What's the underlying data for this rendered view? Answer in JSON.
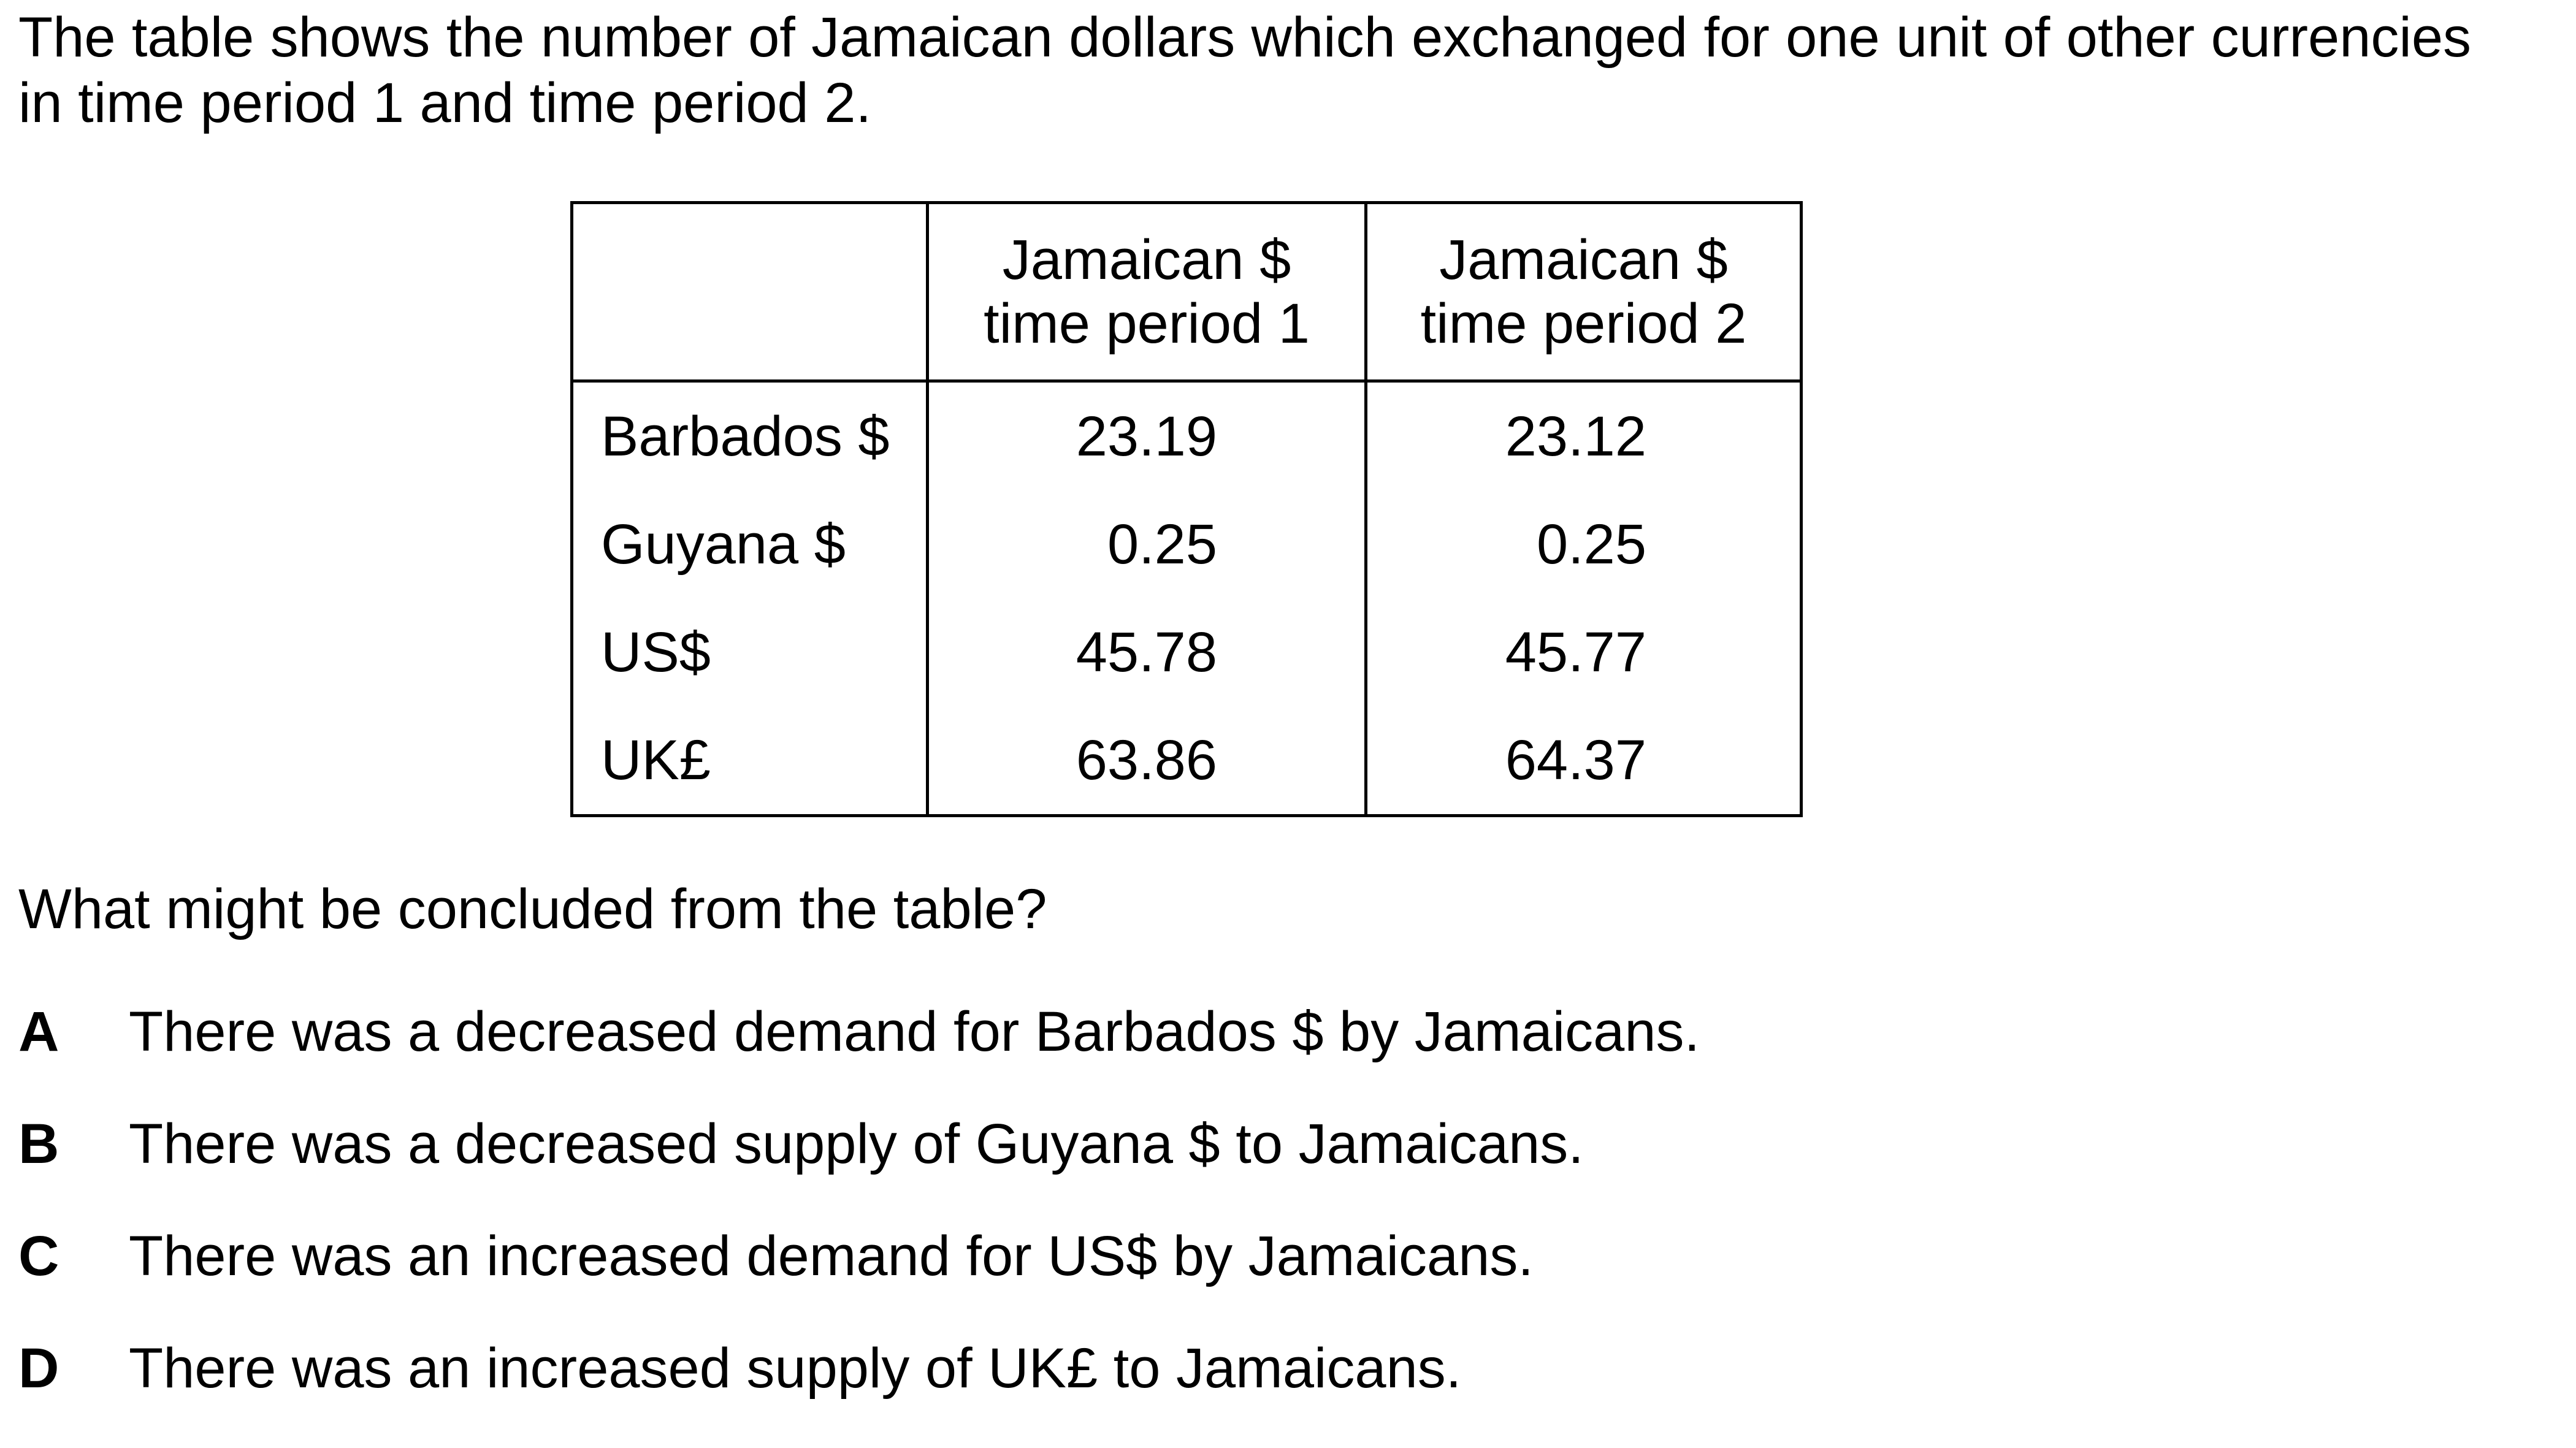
{
  "intro": "The table shows the number of Jamaican dollars which exchanged for one unit of other currencies in time period 1 and time period 2.",
  "table": {
    "headers": [
      "",
      "Jamaican $\ntime period 1",
      "Jamaican $\ntime period 2"
    ],
    "header_lines": {
      "col1": [
        "Jamaican $",
        "time period 1"
      ],
      "col2": [
        "Jamaican $",
        "time period 2"
      ]
    },
    "rows": [
      {
        "currency": "Barbados $",
        "period1": "23.19",
        "period2": "23.12"
      },
      {
        "currency": "Guyana $",
        "period1": "0.25",
        "period2": "0.25"
      },
      {
        "currency": "US$",
        "period1": "45.78",
        "period2": "45.77"
      },
      {
        "currency": "UK£",
        "period1": "63.86",
        "period2": "64.37"
      }
    ]
  },
  "question": "What might be concluded from the table?",
  "options": [
    {
      "letter": "A",
      "text": "There was a decreased demand for Barbados $ by Jamaicans."
    },
    {
      "letter": "B",
      "text": "There was a decreased supply of Guyana $ to Jamaicans."
    },
    {
      "letter": "C",
      "text": "There was an increased demand for US$ by Jamaicans."
    },
    {
      "letter": "D",
      "text": "There was an increased supply of UK£ to Jamaicans."
    }
  ]
}
